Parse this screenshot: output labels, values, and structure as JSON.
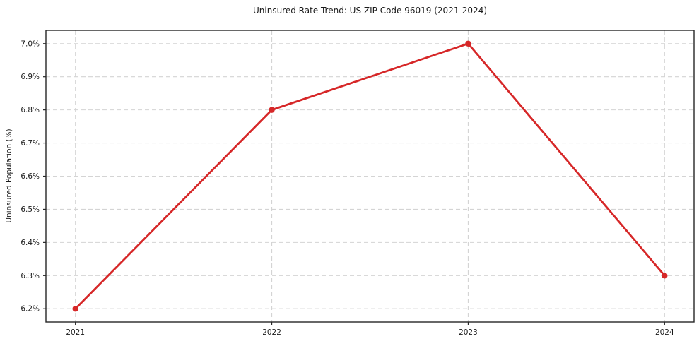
{
  "chart_data": {
    "type": "line",
    "title": "Uninsured Rate Trend: US ZIP Code 96019 (2021-2024)",
    "xlabel": "",
    "ylabel": "Uninsured Population (%)",
    "x": [
      2021,
      2022,
      2023,
      2024
    ],
    "values": [
      6.2,
      6.8,
      7.0,
      6.3
    ],
    "x_tick_labels": [
      "2021",
      "2022",
      "2023",
      "2024"
    ],
    "y_ticks": [
      6.2,
      6.3,
      6.4,
      6.5,
      6.6,
      6.7,
      6.8,
      6.9,
      7.0
    ],
    "y_tick_labels": [
      "6.2%",
      "6.3%",
      "6.4%",
      "6.5%",
      "6.6%",
      "6.7%",
      "6.8%",
      "6.9%",
      "7.0%"
    ],
    "xlim": [
      2020.85,
      2024.15
    ],
    "ylim": [
      6.16,
      7.04
    ],
    "grid": true,
    "grid_style": "dashed",
    "legend_position": "none",
    "marker": "circle",
    "colors": {
      "line": "#d62728",
      "grid": "#d4d4d4",
      "spine": "#262626",
      "text": "#1a1a1a",
      "background": "#ffffff"
    }
  }
}
